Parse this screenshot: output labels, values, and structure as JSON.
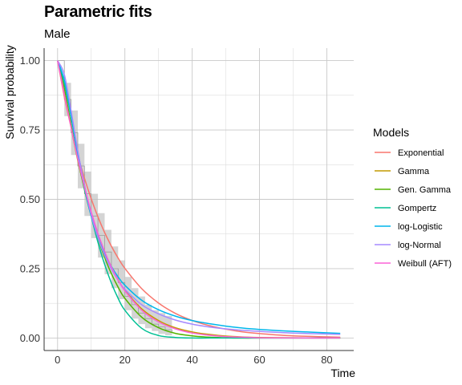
{
  "chart_data": {
    "type": "line",
    "title": "Parametric fits",
    "subtitle": "Male",
    "xlabel": "Time",
    "ylabel": "Survival probability",
    "xlim": [
      -4,
      88
    ],
    "ylim": [
      -0.045,
      1.045
    ],
    "xticks": [
      0,
      20,
      40,
      60,
      80
    ],
    "yticks": [
      0,
      0.25,
      0.5,
      0.75,
      1
    ],
    "ytick_labels": [
      "0.00",
      "0.25",
      "0.50",
      "0.75",
      "1.00"
    ],
    "grid": true,
    "legend": {
      "title": "Models",
      "position": "right"
    },
    "km_estimate": {
      "x": [
        0,
        2,
        4,
        6,
        8,
        10,
        12,
        14,
        16,
        18,
        20,
        22,
        24,
        26,
        28,
        30,
        32,
        34
      ],
      "y": [
        1.0,
        0.86,
        0.74,
        0.62,
        0.52,
        0.44,
        0.37,
        0.31,
        0.25,
        0.2,
        0.15,
        0.12,
        0.09,
        0.07,
        0.05,
        0.04,
        0.03,
        0.02
      ],
      "lower": [
        1.0,
        0.8,
        0.66,
        0.54,
        0.44,
        0.36,
        0.29,
        0.23,
        0.18,
        0.14,
        0.1,
        0.07,
        0.05,
        0.035,
        0.025,
        0.015,
        0.01,
        0.005
      ],
      "upper": [
        1.0,
        0.92,
        0.82,
        0.7,
        0.6,
        0.52,
        0.45,
        0.39,
        0.33,
        0.28,
        0.22,
        0.18,
        0.15,
        0.12,
        0.1,
        0.09,
        0.08,
        0.075
      ]
    },
    "x": [
      0,
      2,
      4,
      6,
      8,
      10,
      12,
      14,
      16,
      18,
      20,
      25,
      30,
      35,
      40,
      45,
      50,
      55,
      60,
      70,
      84
    ],
    "series": [
      {
        "name": "Exponential",
        "color": "#F8766D",
        "values": [
          1.0,
          0.87,
          0.76,
          0.66,
          0.576,
          0.502,
          0.437,
          0.38,
          0.331,
          0.288,
          0.251,
          0.178,
          0.126,
          0.089,
          0.063,
          0.045,
          0.032,
          0.022,
          0.016,
          0.008,
          0.003
        ]
      },
      {
        "name": "Gamma",
        "color": "#C49A00",
        "values": [
          1.0,
          0.89,
          0.76,
          0.64,
          0.54,
          0.45,
          0.375,
          0.31,
          0.255,
          0.21,
          0.172,
          0.105,
          0.063,
          0.037,
          0.022,
          0.013,
          0.007,
          0.004,
          0.002,
          0.001,
          0.0
        ]
      },
      {
        "name": "Gen. Gamma",
        "color": "#53B400",
        "values": [
          1.0,
          0.9,
          0.77,
          0.645,
          0.535,
          0.44,
          0.36,
          0.29,
          0.232,
          0.183,
          0.143,
          0.075,
          0.037,
          0.017,
          0.008,
          0.003,
          0.001,
          0.0,
          0.0,
          0.0,
          0.0
        ]
      },
      {
        "name": "Gompertz",
        "color": "#00C094",
        "values": [
          1.0,
          0.92,
          0.8,
          0.67,
          0.55,
          0.44,
          0.345,
          0.265,
          0.198,
          0.143,
          0.1,
          0.035,
          0.009,
          0.002,
          0.0,
          0.0,
          0.0,
          0.0,
          0.0,
          0.0,
          0.0
        ]
      },
      {
        "name": "log-Logistic",
        "color": "#00B6EB",
        "values": [
          1.0,
          0.93,
          0.8,
          0.66,
          0.54,
          0.44,
          0.365,
          0.305,
          0.258,
          0.22,
          0.19,
          0.136,
          0.102,
          0.079,
          0.063,
          0.052,
          0.043,
          0.036,
          0.031,
          0.024,
          0.017
        ]
      },
      {
        "name": "log-Normal",
        "color": "#A58AFF",
        "values": [
          1.0,
          0.95,
          0.82,
          0.675,
          0.55,
          0.445,
          0.362,
          0.298,
          0.248,
          0.208,
          0.176,
          0.12,
          0.087,
          0.065,
          0.05,
          0.04,
          0.033,
          0.028,
          0.024,
          0.018,
          0.013
        ]
      },
      {
        "name": "Weibull (AFT)",
        "color": "#FB61D7",
        "values": [
          1.0,
          0.88,
          0.76,
          0.645,
          0.545,
          0.455,
          0.378,
          0.312,
          0.256,
          0.209,
          0.17,
          0.1,
          0.058,
          0.033,
          0.018,
          0.01,
          0.005,
          0.003,
          0.001,
          0.0,
          0.0
        ]
      }
    ]
  }
}
